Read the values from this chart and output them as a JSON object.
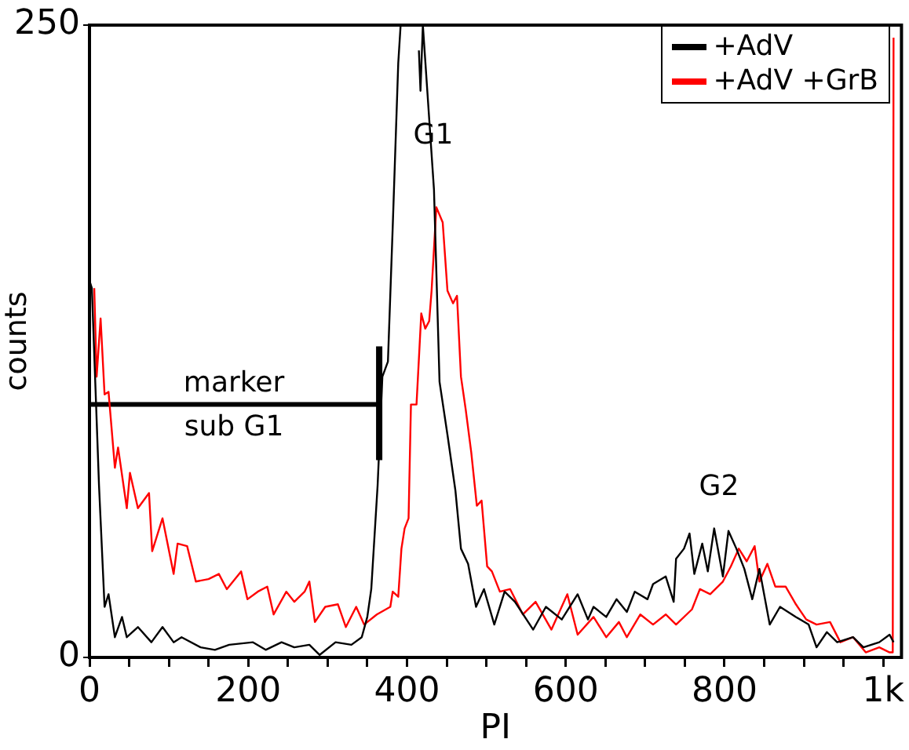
{
  "chart_data": {
    "type": "line",
    "xlabel": "PI",
    "ylabel": "counts",
    "xlim": [
      0,
      1023
    ],
    "ylim": [
      0,
      250
    ],
    "xticks": [
      0,
      {
        "value": 50,
        "label": null
      },
      {
        "value": 100,
        "label": null
      },
      {
        "value": 150,
        "label": null
      },
      200,
      {
        "value": 250,
        "label": null
      },
      {
        "value": 300,
        "label": null
      },
      {
        "value": 350,
        "label": null
      },
      400,
      {
        "value": 450,
        "label": null
      },
      {
        "value": 500,
        "label": null
      },
      {
        "value": 550,
        "label": null
      },
      600,
      {
        "value": 650,
        "label": null
      },
      {
        "value": 700,
        "label": null
      },
      {
        "value": 750,
        "label": null
      },
      800,
      {
        "value": 850,
        "label": null
      },
      {
        "value": 900,
        "label": null
      },
      {
        "value": 950,
        "label": null
      },
      {
        "value": 1000,
        "label": "1k"
      }
    ],
    "yticks": [
      0,
      250
    ],
    "grid": false,
    "legend": "top right",
    "marker": "none",
    "line_style": "solid",
    "series": [
      {
        "name": "+AdV",
        "color": "#000000",
        "x": [
          1,
          3,
          12,
          19,
          24,
          32,
          41,
          47,
          61,
          78,
          92,
          106,
          116,
          140,
          158,
          176,
          206,
          222,
          242,
          258,
          277,
          290,
          310,
          330,
          343,
          350,
          355,
          363,
          369,
          376,
          382,
          389,
          392,
          400,
          415,
          417,
          420,
          434,
          441,
          451,
          461,
          468,
          477,
          487,
          497,
          510,
          523,
          536,
          559,
          575,
          595,
          615,
          628,
          635,
          651,
          664,
          677,
          687,
          703,
          710,
          726,
          736,
          739,
          749,
          756,
          762,
          772,
          779,
          787,
          798,
          805,
          815,
          825,
          835,
          844,
          857,
          870,
          890,
          906,
          916,
          929,
          942,
          962,
          975,
          995,
          1008,
          1013
        ],
        "values": [
          148,
          146,
          68,
          20,
          25,
          8,
          16,
          8,
          12,
          6,
          12,
          6,
          8,
          4,
          3,
          5,
          6,
          3,
          6,
          4,
          5,
          1,
          6,
          5,
          8,
          16,
          27,
          68,
          111,
          117,
          170,
          235,
          250,
          null,
          240,
          224,
          250,
          185,
          109,
          88,
          66,
          43,
          37,
          20,
          27,
          13,
          26,
          22,
          11,
          20,
          15,
          25,
          15,
          20,
          16,
          23,
          18,
          26,
          23,
          29,
          32,
          22,
          39,
          43,
          49,
          33,
          45,
          34,
          51,
          32,
          50,
          43,
          35,
          23,
          35,
          13,
          20,
          16,
          13,
          4,
          10,
          6,
          8,
          4,
          6,
          9,
          6
        ]
      },
      {
        "name": "+AdV +GrB",
        "color": "#ff0000",
        "x": [
          6,
          9,
          14,
          19,
          24,
          32,
          36,
          47,
          51,
          61,
          75,
          79,
          92,
          106,
          111,
          123,
          134,
          150,
          163,
          173,
          191,
          199,
          212,
          224,
          232,
          248,
          258,
          271,
          277,
          284,
          297,
          313,
          323,
          336,
          346,
          362,
          379,
          382,
          389,
          393,
          397,
          402,
          405,
          412,
          418,
          423,
          428,
          431,
          437,
          445,
          451,
          458,
          463,
          468,
          474,
          481,
          488,
          494,
          501,
          507,
          517,
          530,
          546,
          562,
          582,
          602,
          615,
          635,
          651,
          667,
          677,
          694,
          710,
          726,
          739,
          759,
          769,
          782,
          798,
          808,
          818,
          828,
          838,
          844,
          854,
          864,
          877,
          890,
          903,
          916,
          933,
          946,
          962,
          978,
          995,
          1008,
          1012,
          1013
        ],
        "values": [
          146,
          111,
          134,
          104,
          105,
          75,
          83,
          59,
          73,
          59,
          65,
          42,
          55,
          33,
          45,
          44,
          30,
          31,
          33,
          27,
          34,
          23,
          26,
          28,
          17,
          26,
          22,
          26,
          30,
          14,
          20,
          21,
          12,
          20,
          13,
          17,
          20,
          26,
          24,
          43,
          51,
          55,
          100,
          100,
          136,
          130,
          133,
          145,
          178,
          172,
          145,
          140,
          143,
          111,
          98,
          81,
          60,
          62,
          36,
          34,
          26,
          27,
          17,
          22,
          11,
          25,
          9,
          16,
          8,
          14,
          8,
          17,
          13,
          17,
          13,
          19,
          27,
          25,
          30,
          36,
          43,
          38,
          44,
          30,
          37,
          28,
          28,
          21,
          15,
          13,
          14,
          6,
          8,
          2,
          4,
          2,
          2,
          245
        ]
      },
      {
        "color": "#000000",
        "x": [
          2,
          365
        ],
        "values": [
          100,
          100
        ],
        "errors": [
          null,
          [
            78,
            123
          ]
        ]
      }
    ],
    "annotations": [
      "G1",
      "G2",
      {
        "text": "marker\nsub G1",
        "x": 182,
        "y": 100
      }
    ]
  }
}
